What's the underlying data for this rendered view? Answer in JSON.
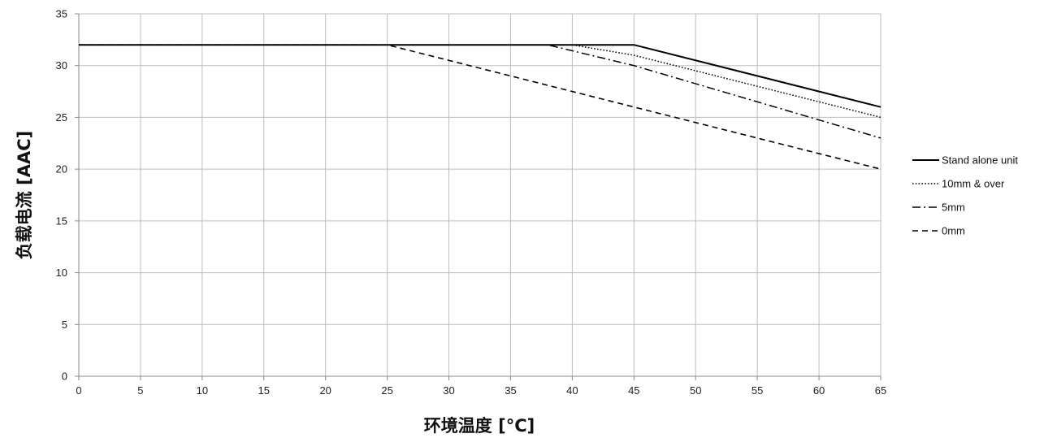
{
  "chart_data": {
    "type": "line",
    "xlabel": "环境温度 [°C]",
    "ylabel": "负载电流 [AAC]",
    "xlim": [
      0,
      65
    ],
    "ylim": [
      0,
      35
    ],
    "xticks": [
      "0",
      "5",
      "10",
      "15",
      "20",
      "25",
      "30",
      "35",
      "40",
      "45",
      "50",
      "55",
      "60",
      "65"
    ],
    "yticks": [
      "0",
      "5",
      "10",
      "15",
      "20",
      "25",
      "30",
      "35"
    ],
    "grid": true,
    "legend_position": "right",
    "series": [
      {
        "name": "Stand alone unit",
        "style": "solid",
        "color": "#000000",
        "x": [
          0,
          45,
          65
        ],
        "y": [
          32,
          32,
          26
        ]
      },
      {
        "name": "10mm & over",
        "style": "dotted",
        "color": "#000000",
        "x": [
          0,
          40,
          45,
          65
        ],
        "y": [
          32,
          32,
          31,
          25
        ]
      },
      {
        "name": "5mm",
        "style": "dashdot",
        "color": "#000000",
        "x": [
          0,
          38,
          45,
          65
        ],
        "y": [
          32,
          32,
          30,
          23
        ]
      },
      {
        "name": "0mm",
        "style": "dashed",
        "color": "#000000",
        "x": [
          0,
          25,
          45,
          65
        ],
        "y": [
          32,
          32,
          26,
          20
        ]
      }
    ]
  }
}
